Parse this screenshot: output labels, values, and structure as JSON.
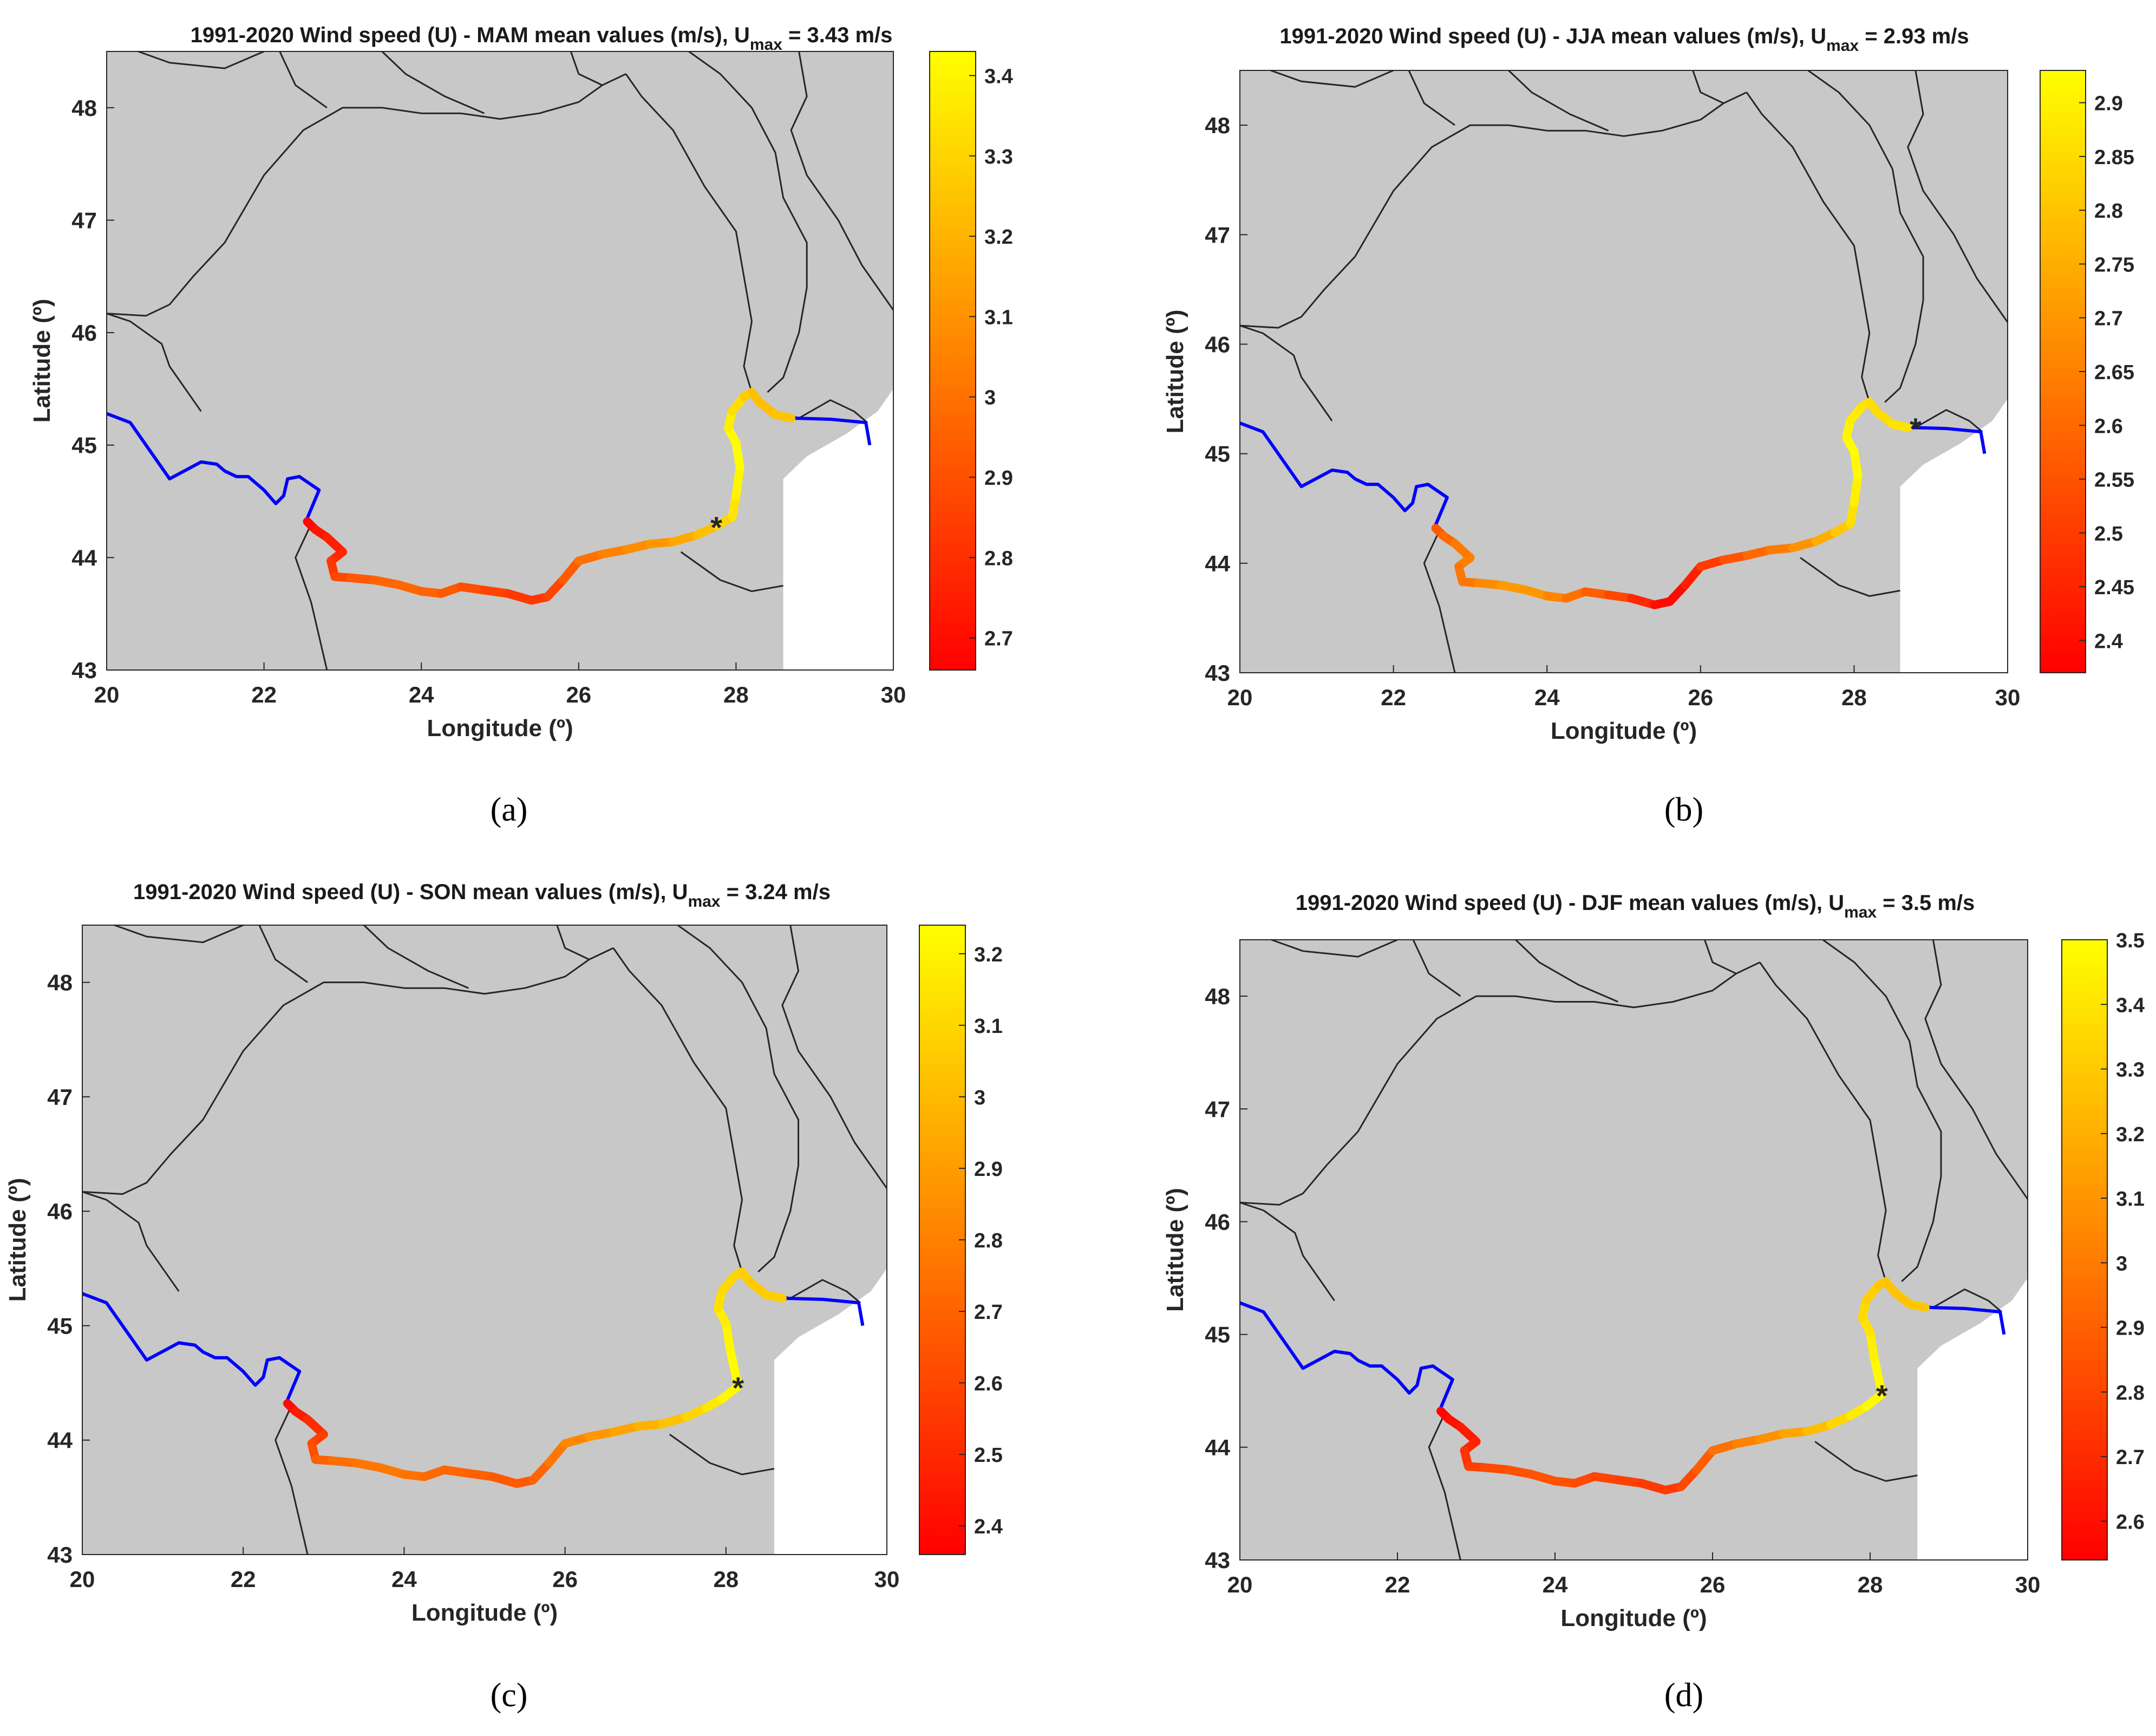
{
  "figure": {
    "panel_captions": [
      "(a)",
      "(b)",
      "(c)",
      "(d)"
    ]
  },
  "chart_data": [
    {
      "type": "line",
      "panel": "a",
      "title": "1991-2020 Wind speed (U) - MAM mean values (m/s), U",
      "title_subscript": "max",
      "title_suffix": " = 3.43 m/s",
      "xlabel": "Longitude (º)",
      "ylabel": "Latitude (º)",
      "xlim": [
        20,
        30
      ],
      "ylim": [
        43,
        48.5
      ],
      "xticks": [
        "20",
        "22",
        "24",
        "26",
        "28",
        "30"
      ],
      "yticks": [
        "43",
        "44",
        "45",
        "46",
        "47",
        "48"
      ],
      "colorbar": {
        "min": 2.66,
        "max": 3.43,
        "ticks": [
          "2.7",
          "2.8",
          "2.9",
          "3",
          "3.1",
          "3.2",
          "3.3",
          "3.4"
        ]
      },
      "marker": {
        "lon": 27.75,
        "lat": 44.28
      },
      "colored_series": {
        "lon": [
          22.55,
          22.65,
          22.8,
          23.0,
          22.85,
          22.9,
          23.1,
          23.4,
          23.7,
          24.0,
          24.25,
          24.5,
          24.8,
          25.1,
          25.4,
          25.6,
          25.8,
          26.0,
          26.3,
          26.6,
          26.9,
          27.2,
          27.5,
          27.75,
          27.95,
          28.0,
          28.05,
          28.0,
          27.9,
          27.95,
          28.1,
          28.2,
          28.3,
          28.5,
          28.7
        ],
        "lat": [
          44.32,
          44.25,
          44.18,
          44.05,
          43.97,
          43.83,
          43.82,
          43.8,
          43.76,
          43.7,
          43.68,
          43.74,
          43.71,
          43.68,
          43.62,
          43.65,
          43.8,
          43.97,
          44.03,
          44.07,
          44.12,
          44.14,
          44.2,
          44.28,
          44.36,
          44.55,
          44.8,
          45.02,
          45.15,
          45.3,
          45.43,
          45.47,
          45.38,
          45.27,
          45.24
        ],
        "values": [
          2.66,
          2.7,
          2.74,
          2.76,
          2.8,
          2.86,
          2.9,
          2.95,
          2.98,
          2.97,
          2.94,
          2.92,
          2.88,
          2.85,
          2.82,
          2.84,
          2.9,
          2.97,
          3.03,
          3.07,
          3.1,
          3.14,
          3.2,
          3.28,
          3.33,
          3.38,
          3.42,
          3.43,
          3.41,
          3.36,
          3.3,
          3.25,
          3.23,
          3.24,
          3.26
        ]
      }
    },
    {
      "type": "line",
      "panel": "b",
      "title": "1991-2020 Wind speed (U) - JJA mean values (m/s), U",
      "title_subscript": "max",
      "title_suffix": " = 2.93 m/s",
      "xlabel": "Longitude (º)",
      "ylabel": "Latitude (º)",
      "xlim": [
        20,
        30
      ],
      "ylim": [
        43,
        48.5
      ],
      "xticks": [
        "20",
        "22",
        "24",
        "26",
        "28",
        "30"
      ],
      "yticks": [
        "43",
        "44",
        "45",
        "46",
        "47",
        "48"
      ],
      "colorbar": {
        "min": 2.37,
        "max": 2.93,
        "ticks": [
          "2.4",
          "2.45",
          "2.5",
          "2.55",
          "2.6",
          "2.65",
          "2.7",
          "2.75",
          "2.8",
          "2.85",
          "2.9"
        ]
      },
      "marker": {
        "lon": 28.8,
        "lat": 45.24
      },
      "colored_series": {
        "lon": [
          22.55,
          22.65,
          22.8,
          23.0,
          22.85,
          22.9,
          23.1,
          23.4,
          23.7,
          24.0,
          24.25,
          24.5,
          24.8,
          25.1,
          25.4,
          25.6,
          25.8,
          26.0,
          26.3,
          26.6,
          26.9,
          27.2,
          27.5,
          27.75,
          27.95,
          28.0,
          28.05,
          28.0,
          27.9,
          27.95,
          28.1,
          28.2,
          28.3,
          28.5,
          28.7
        ],
        "lat": [
          44.32,
          44.25,
          44.18,
          44.05,
          43.97,
          43.83,
          43.82,
          43.8,
          43.76,
          43.7,
          43.68,
          43.74,
          43.71,
          43.68,
          43.62,
          43.65,
          43.8,
          43.97,
          44.03,
          44.07,
          44.12,
          44.14,
          44.2,
          44.28,
          44.36,
          44.55,
          44.8,
          45.02,
          45.15,
          45.3,
          45.43,
          45.47,
          45.38,
          45.27,
          45.24
        ],
        "values": [
          2.55,
          2.58,
          2.62,
          2.66,
          2.64,
          2.62,
          2.64,
          2.7,
          2.72,
          2.68,
          2.64,
          2.6,
          2.55,
          2.5,
          2.42,
          2.38,
          2.4,
          2.47,
          2.53,
          2.58,
          2.62,
          2.66,
          2.72,
          2.78,
          2.84,
          2.88,
          2.91,
          2.93,
          2.92,
          2.9,
          2.88,
          2.86,
          2.85,
          2.86,
          2.88
        ]
      }
    },
    {
      "type": "line",
      "panel": "c",
      "title": "1991-2020 Wind speed (U) - SON mean values (m/s), U",
      "title_subscript": "max",
      "title_suffix": " = 3.24 m/s",
      "xlabel": "Longitude (º)",
      "ylabel": "Latitude (º)",
      "xlim": [
        20,
        30
      ],
      "ylim": [
        43,
        48.5
      ],
      "xticks": [
        "20",
        "22",
        "24",
        "26",
        "28",
        "30"
      ],
      "yticks": [
        "43",
        "44",
        "45",
        "46",
        "47",
        "48"
      ],
      "colorbar": {
        "min": 2.36,
        "max": 3.24,
        "ticks": [
          "2.4",
          "2.5",
          "2.6",
          "2.7",
          "2.8",
          "2.9",
          "3",
          "3.1",
          "3.2"
        ]
      },
      "marker": {
        "lon": 28.15,
        "lat": 44.47
      },
      "colored_series": {
        "lon": [
          22.55,
          22.65,
          22.8,
          23.0,
          22.85,
          22.9,
          23.1,
          23.4,
          23.7,
          24.0,
          24.25,
          24.5,
          24.8,
          25.1,
          25.4,
          25.6,
          25.8,
          26.0,
          26.3,
          26.6,
          26.9,
          27.2,
          27.5,
          27.75,
          27.95,
          28.15,
          28.05,
          28.0,
          27.9,
          27.95,
          28.1,
          28.2,
          28.3,
          28.5,
          28.7
        ],
        "lat": [
          44.32,
          44.25,
          44.18,
          44.05,
          43.97,
          43.83,
          43.82,
          43.8,
          43.76,
          43.7,
          43.68,
          43.74,
          43.71,
          43.68,
          43.62,
          43.65,
          43.8,
          43.97,
          44.03,
          44.07,
          44.12,
          44.14,
          44.2,
          44.28,
          44.36,
          44.47,
          44.8,
          45.02,
          45.15,
          45.3,
          45.43,
          45.47,
          45.38,
          45.27,
          45.24
        ],
        "values": [
          2.38,
          2.42,
          2.48,
          2.55,
          2.6,
          2.66,
          2.72,
          2.76,
          2.78,
          2.77,
          2.74,
          2.72,
          2.7,
          2.68,
          2.66,
          2.68,
          2.74,
          2.8,
          2.86,
          2.9,
          2.95,
          3.0,
          3.06,
          3.13,
          3.19,
          3.24,
          3.22,
          3.2,
          3.16,
          3.12,
          3.1,
          3.08,
          3.06,
          3.06,
          3.08
        ]
      }
    },
    {
      "type": "line",
      "panel": "d",
      "title": "1991-2020 Wind speed (U) - DJF mean values (m/s), U",
      "title_subscript": "max",
      "title_suffix": " = 3.5 m/s",
      "xlabel": "Longitude (º)",
      "ylabel": "Latitude (º)",
      "xlim": [
        20,
        30
      ],
      "ylim": [
        43,
        48.5
      ],
      "xticks": [
        "20",
        "22",
        "24",
        "26",
        "28",
        "30"
      ],
      "yticks": [
        "43",
        "44",
        "45",
        "46",
        "47",
        "48"
      ],
      "colorbar": {
        "min": 2.54,
        "max": 3.5,
        "ticks": [
          "2.6",
          "2.7",
          "2.8",
          "2.9",
          "3",
          "3.1",
          "3.2",
          "3.3",
          "3.4",
          "3.5"
        ]
      },
      "marker": {
        "lon": 28.15,
        "lat": 44.47
      },
      "colored_series": {
        "lon": [
          22.55,
          22.65,
          22.8,
          23.0,
          22.85,
          22.9,
          23.1,
          23.4,
          23.7,
          24.0,
          24.25,
          24.5,
          24.8,
          25.1,
          25.4,
          25.6,
          25.8,
          26.0,
          26.3,
          26.6,
          26.9,
          27.2,
          27.5,
          27.75,
          27.95,
          28.15,
          28.05,
          28.0,
          27.9,
          27.95,
          28.1,
          28.2,
          28.3,
          28.5,
          28.7
        ],
        "lat": [
          44.32,
          44.25,
          44.18,
          44.05,
          43.97,
          43.83,
          43.82,
          43.8,
          43.76,
          43.7,
          43.68,
          43.74,
          43.71,
          43.68,
          43.62,
          43.65,
          43.8,
          43.97,
          44.03,
          44.07,
          44.12,
          44.14,
          44.2,
          44.28,
          44.36,
          44.47,
          44.8,
          45.02,
          45.15,
          45.3,
          45.43,
          45.47,
          45.38,
          45.27,
          45.24
        ],
        "values": [
          2.55,
          2.58,
          2.62,
          2.66,
          2.7,
          2.76,
          2.8,
          2.84,
          2.86,
          2.85,
          2.83,
          2.81,
          2.79,
          2.77,
          2.75,
          2.78,
          2.85,
          2.93,
          3.0,
          3.06,
          3.12,
          3.2,
          3.3,
          3.4,
          3.46,
          3.5,
          3.46,
          3.42,
          3.38,
          3.34,
          3.3,
          3.28,
          3.27,
          3.28,
          3.3
        ]
      }
    }
  ]
}
